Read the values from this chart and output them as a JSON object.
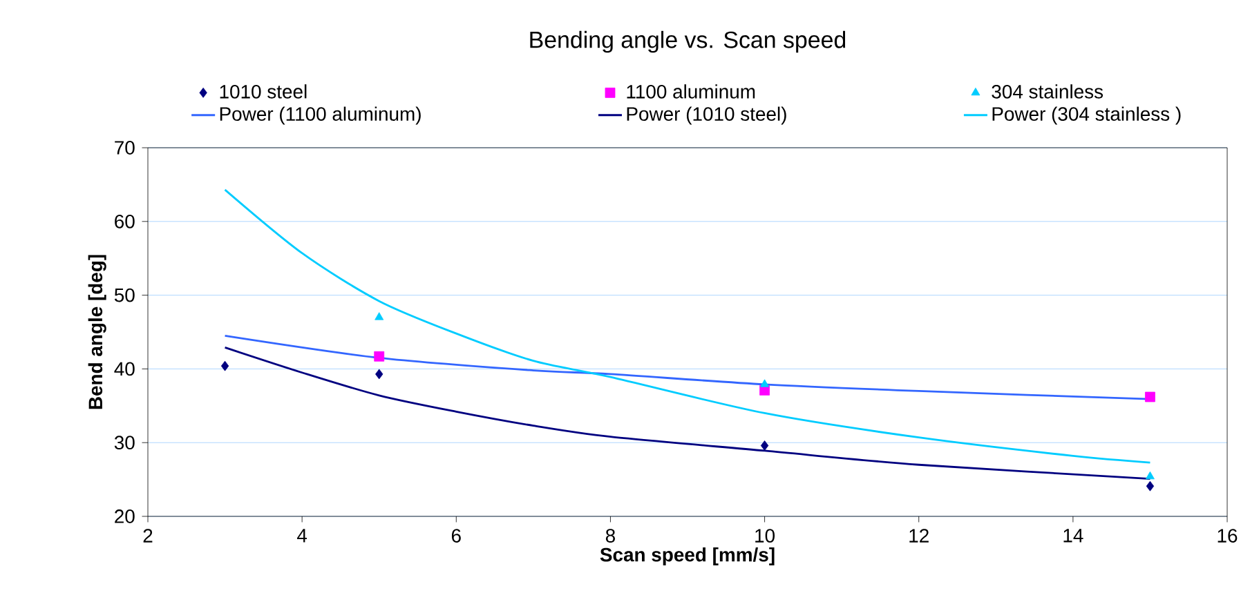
{
  "chart_data": {
    "type": "scatter",
    "title": "Bending angle vs. Scan speed",
    "xlabel": "Scan speed [mm/s]",
    "ylabel": "Bend angle [deg]",
    "xlim": [
      2,
      16
    ],
    "xticks": [
      2,
      4,
      6,
      8,
      10,
      12,
      14,
      16
    ],
    "ylim": [
      20,
      70
    ],
    "yticks": [
      20,
      30,
      40,
      50,
      60,
      70
    ],
    "grid": "y",
    "legend": "top",
    "series": [
      {
        "name": "1010 steel",
        "marker": "diamond",
        "color": "#000080",
        "x": [
          3,
          5,
          10,
          15
        ],
        "values": [
          40.4,
          39.3,
          29.6,
          24.1
        ]
      },
      {
        "name": "1100 aluminum",
        "marker": "square",
        "color": "#ff00ff",
        "x": [
          5,
          10,
          15
        ],
        "values": [
          41.7,
          37.1,
          36.2
        ]
      },
      {
        "name": "304 stainless",
        "marker": "triangle",
        "color": "#00ccff",
        "x": [
          5,
          10,
          15
        ],
        "values": [
          47.0,
          37.9,
          25.4
        ]
      },
      {
        "name": "Power (1100 aluminum)",
        "type": "line",
        "color": "#3366ff",
        "x": [
          3,
          5,
          7,
          8,
          10,
          12,
          15
        ],
        "values": [
          44.5,
          41.5,
          39.8,
          39.3,
          37.9,
          37.0,
          35.9
        ]
      },
      {
        "name": "Power (1010 steel)",
        "type": "line",
        "color": "#000080",
        "x": [
          3,
          4,
          5,
          6,
          7,
          8,
          10,
          12,
          15
        ],
        "values": [
          42.9,
          39.5,
          36.4,
          34.2,
          32.3,
          30.8,
          28.9,
          27.0,
          25.1
        ]
      },
      {
        "name": "Power (304 stainless )",
        "type": "line",
        "color": "#00ccff",
        "x": [
          3,
          4,
          5,
          6,
          7,
          8,
          10,
          12,
          14,
          15
        ],
        "values": [
          64.3,
          55.7,
          49.2,
          44.8,
          41.1,
          38.9,
          34.0,
          30.7,
          28.2,
          27.3
        ]
      }
    ]
  }
}
